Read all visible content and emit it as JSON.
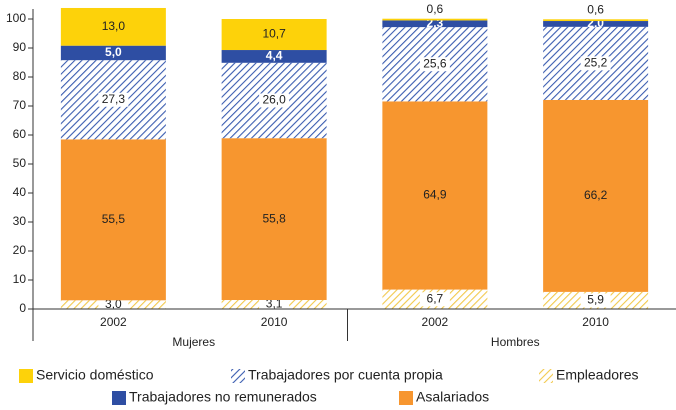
{
  "chart_data": {
    "type": "stacked-bar",
    "categories": [
      "2002",
      "2010",
      "2002",
      "2010"
    ],
    "groups": [
      "Mujeres",
      "Hombres"
    ],
    "ylim": [
      0,
      100
    ],
    "yticks": [
      0,
      10,
      20,
      30,
      40,
      50,
      60,
      70,
      80,
      90,
      100
    ],
    "series": [
      {
        "name": "Empleadores",
        "color": "#f2c94c",
        "hatch": true,
        "values": [
          3.0,
          3.1,
          6.7,
          5.9
        ],
        "value_labels": [
          "3,0",
          "3,1",
          "6,7",
          "5,9"
        ]
      },
      {
        "name": "Asalariados",
        "color": "#f7962f",
        "hatch": false,
        "values": [
          55.5,
          55.8,
          64.9,
          66.2
        ],
        "value_labels": [
          "55,5",
          "55,8",
          "64,9",
          "66,2"
        ]
      },
      {
        "name": "Trabajadores por cuenta propia",
        "color": "#3a5cb0",
        "hatch": true,
        "values": [
          27.3,
          26.0,
          25.6,
          25.2
        ],
        "value_labels": [
          "27,3",
          "26,0",
          "25,6",
          "25,2"
        ]
      },
      {
        "name": "Trabajadores no remunerados",
        "color": "#2e4ea3",
        "hatch": false,
        "values": [
          5.0,
          4.4,
          2.3,
          2.0
        ],
        "value_labels": [
          "5,0",
          "4,4",
          "2,3",
          "2,0"
        ]
      },
      {
        "name": "Servicio doméstico",
        "color": "#fdd20a",
        "hatch": false,
        "values": [
          13.0,
          10.7,
          0.6,
          0.6
        ],
        "value_labels": [
          "13,0",
          "10,7",
          "0,6",
          "0,6"
        ]
      }
    ]
  }
}
